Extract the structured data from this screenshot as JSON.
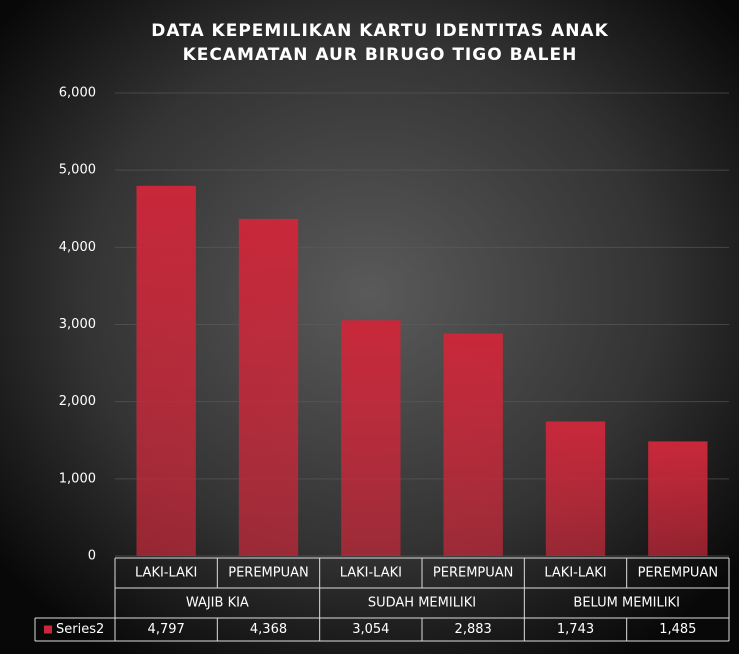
{
  "chart_data": {
    "type": "bar",
    "title": [
      "DATA KEPEMILIKAN  KARTU IDENTITAS  ANAK",
      "KECAMATAN AUR BIRUGO TIGO BALEH"
    ],
    "categories": [
      "LAKI-LAKI",
      "PEREMPUAN",
      "LAKI-LAKI",
      "PEREMPUAN",
      "LAKI-LAKI",
      "PEREMPUAN"
    ],
    "groups": [
      "WAJIB KIA",
      "SUDAH MEMILIKI",
      "BELUM MEMILIKI"
    ],
    "series": [
      {
        "name": "Series2",
        "color": "#c8283a",
        "values": [
          4797,
          4368,
          3054,
          2883,
          1743,
          1485
        ],
        "value_labels": [
          "4,797",
          "4,368",
          "3,054",
          "2,883",
          "1,743",
          "1,485"
        ]
      }
    ],
    "ylim": [
      0,
      6000
    ],
    "yticks": [
      0,
      {
        "value": 1000,
        "label": "1,000"
      },
      {
        "value": 2000,
        "label": "2,000"
      },
      {
        "value": 3000,
        "label": "3,000"
      },
      {
        "value": 4000,
        "label": "4,000"
      },
      {
        "value": 5000,
        "label": "5,000"
      },
      {
        "value": 6000,
        "label": "6,000"
      }
    ],
    "grid": true
  }
}
